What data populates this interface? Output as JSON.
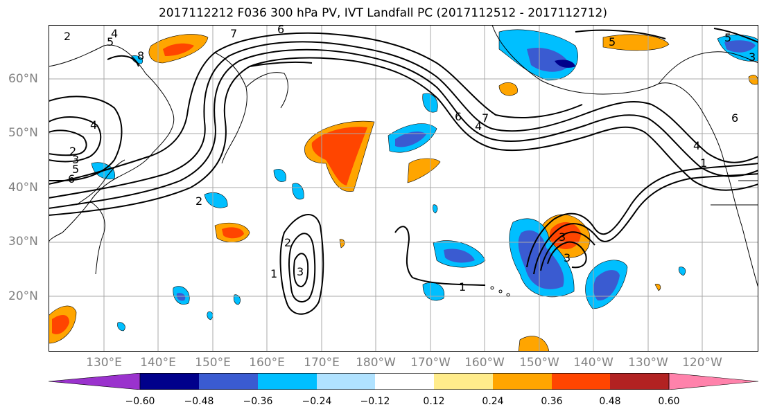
{
  "title": "2017112212 F036 300 hPa PV, IVT Landfall PC (2017112512 - 2017112712)",
  "lat_labels": [
    "60°N",
    "50°N",
    "40°N",
    "30°N",
    "20°N"
  ],
  "lon_labels": [
    "130°E",
    "140°E",
    "150°E",
    "160°E",
    "170°E",
    "180°W",
    "170°W",
    "160°W",
    "150°W",
    "140°W",
    "130°W",
    "120°W"
  ],
  "colorbar": {
    "tick_labels": [
      "−0.60",
      "−0.48",
      "−0.36",
      "−0.24",
      "−0.12",
      "0.12",
      "0.24",
      "0.36",
      "0.48",
      "0.60"
    ],
    "colors": [
      "#9a32cd",
      "#00008b",
      "#3a5bd1",
      "#00bfff",
      "#b0e2ff",
      "#ffffff",
      "#ffec8b",
      "#ffa500",
      "#ff4500",
      "#b22222",
      "#ff82ab"
    ]
  },
  "contour_labels": [
    "2",
    "5",
    "4",
    "8",
    "6",
    "7",
    "2",
    "3",
    "5",
    "6",
    "4",
    "2",
    "6",
    "7",
    "4",
    "5",
    "6",
    "4",
    "1",
    "2",
    "1",
    "3",
    "1",
    "3",
    "3",
    "5",
    "3"
  ]
}
